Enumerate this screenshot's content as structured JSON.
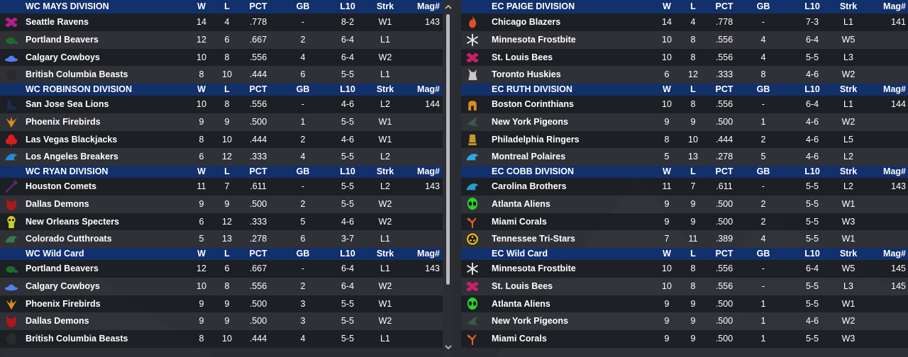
{
  "headers": {
    "w": "W",
    "l": "L",
    "pct": "PCT",
    "gb": "GB",
    "l10": "L10",
    "strk": "Strk",
    "mag": "Mag#"
  },
  "colors": {
    "header_bg": "#12306b",
    "page_bg": "#2a2c31"
  },
  "left": [
    {
      "title": "WC MAYS DIVISION",
      "teams": [
        {
          "name": "Seattle Ravens",
          "icon": "seattle-ravens-logo-icon",
          "color": "#b0208a",
          "w": "14",
          "l": "4",
          "pct": ".778",
          "gb": "-",
          "l10": "8-2",
          "strk": "W1",
          "mag": "143"
        },
        {
          "name": "Portland Beavers",
          "icon": "portland-beavers-logo-icon",
          "color": "#1e6a2e",
          "w": "12",
          "l": "6",
          "pct": ".667",
          "gb": "2",
          "l10": "6-4",
          "strk": "L1",
          "mag": ""
        },
        {
          "name": "Calgary Cowboys",
          "icon": "calgary-cowboys-logo-icon",
          "color": "#4f7ff0",
          "w": "10",
          "l": "8",
          "pct": ".556",
          "gb": "4",
          "l10": "6-4",
          "strk": "W2",
          "mag": ""
        },
        {
          "name": "British Columbia Beasts",
          "icon": "british-columbia-beasts-logo-icon",
          "color": "#2a2a2a",
          "w": "8",
          "l": "10",
          "pct": ".444",
          "gb": "6",
          "l10": "5-5",
          "strk": "L1",
          "mag": ""
        }
      ]
    },
    {
      "title": "WC ROBINSON DIVISION",
      "teams": [
        {
          "name": "San Jose Sea Lions",
          "icon": "san-jose-sea-lions-logo-icon",
          "color": "#1a2d55",
          "w": "10",
          "l": "8",
          "pct": ".556",
          "gb": "-",
          "l10": "4-6",
          "strk": "L2",
          "mag": "144"
        },
        {
          "name": "Phoenix Firebirds",
          "icon": "phoenix-firebirds-logo-icon",
          "color": "#e08a1e",
          "w": "9",
          "l": "9",
          "pct": ".500",
          "gb": "1",
          "l10": "5-5",
          "strk": "W1",
          "mag": ""
        },
        {
          "name": "Las Vegas Blackjacks",
          "icon": "las-vegas-blackjacks-logo-icon",
          "color": "#d81e1e",
          "w": "8",
          "l": "10",
          "pct": ".444",
          "gb": "2",
          "l10": "4-6",
          "strk": "W1",
          "mag": ""
        },
        {
          "name": "Los Angeles Breakers",
          "icon": "los-angeles-breakers-logo-icon",
          "color": "#1f8ad8",
          "w": "6",
          "l": "12",
          "pct": ".333",
          "gb": "4",
          "l10": "5-5",
          "strk": "L2",
          "mag": ""
        }
      ]
    },
    {
      "title": "WC RYAN DIVISION",
      "teams": [
        {
          "name": "Houston Comets",
          "icon": "houston-comets-logo-icon",
          "color": "#5a2a78",
          "w": "11",
          "l": "7",
          "pct": ".611",
          "gb": "-",
          "l10": "5-5",
          "strk": "L2",
          "mag": "143"
        },
        {
          "name": "Dallas Demons",
          "icon": "dallas-demons-logo-icon",
          "color": "#b01818",
          "w": "9",
          "l": "9",
          "pct": ".500",
          "gb": "2",
          "l10": "5-5",
          "strk": "W2",
          "mag": ""
        },
        {
          "name": "New Orleans Specters",
          "icon": "new-orleans-specters-logo-icon",
          "color": "#c8d020",
          "w": "6",
          "l": "12",
          "pct": ".333",
          "gb": "5",
          "l10": "4-6",
          "strk": "W2",
          "mag": ""
        },
        {
          "name": "Colorado Cutthroats",
          "icon": "colorado-cutthroats-logo-icon",
          "color": "#3a7a4a",
          "w": "5",
          "l": "13",
          "pct": ".278",
          "gb": "6",
          "l10": "3-7",
          "strk": "L1",
          "mag": ""
        }
      ]
    },
    {
      "title": "WC  Wild Card",
      "teams": [
        {
          "name": "Portland Beavers",
          "icon": "portland-beavers-logo-icon",
          "color": "#1e6a2e",
          "w": "12",
          "l": "6",
          "pct": ".667",
          "gb": "-",
          "l10": "6-4",
          "strk": "L1",
          "mag": "143"
        },
        {
          "name": "Calgary Cowboys",
          "icon": "calgary-cowboys-logo-icon",
          "color": "#4f7ff0",
          "w": "10",
          "l": "8",
          "pct": ".556",
          "gb": "2",
          "l10": "6-4",
          "strk": "W2",
          "mag": ""
        },
        {
          "name": "Phoenix Firebirds",
          "icon": "phoenix-firebirds-logo-icon",
          "color": "#e08a1e",
          "w": "9",
          "l": "9",
          "pct": ".500",
          "gb": "3",
          "l10": "5-5",
          "strk": "W1",
          "mag": ""
        },
        {
          "name": "Dallas Demons",
          "icon": "dallas-demons-logo-icon",
          "color": "#b01818",
          "w": "9",
          "l": "9",
          "pct": ".500",
          "gb": "3",
          "l10": "5-5",
          "strk": "W2",
          "mag": ""
        },
        {
          "name": "British Columbia Beasts",
          "icon": "british-columbia-beasts-logo-icon",
          "color": "#2a2a2a",
          "w": "8",
          "l": "10",
          "pct": ".444",
          "gb": "4",
          "l10": "5-5",
          "strk": "L1",
          "mag": ""
        }
      ]
    }
  ],
  "right": [
    {
      "title": "EC PAIGE DIVISION",
      "teams": [
        {
          "name": "Chicago Blazers",
          "icon": "chicago-blazers-logo-icon",
          "color": "#e0501e",
          "w": "14",
          "l": "4",
          "pct": ".778",
          "gb": "-",
          "l10": "7-3",
          "strk": "L1",
          "mag": "141"
        },
        {
          "name": "Minnesota Frostbite",
          "icon": "minnesota-frostbite-logo-icon",
          "color": "#e8e8e8",
          "w": "10",
          "l": "8",
          "pct": ".556",
          "gb": "4",
          "l10": "6-4",
          "strk": "W5",
          "mag": ""
        },
        {
          "name": "St. Louis Bees",
          "icon": "st-louis-bees-logo-icon",
          "color": "#c8206a",
          "w": "10",
          "l": "8",
          "pct": ".556",
          "gb": "4",
          "l10": "5-5",
          "strk": "L3",
          "mag": ""
        },
        {
          "name": "Toronto Huskies",
          "icon": "toronto-huskies-logo-icon",
          "color": "#c8c8c8",
          "w": "6",
          "l": "12",
          "pct": ".333",
          "gb": "8",
          "l10": "4-6",
          "strk": "W2",
          "mag": ""
        }
      ]
    },
    {
      "title": "EC RUTH DIVISION",
      "teams": [
        {
          "name": "Boston Corinthians",
          "icon": "boston-corinthians-logo-icon",
          "color": "#e08a1e",
          "w": "10",
          "l": "8",
          "pct": ".556",
          "gb": "-",
          "l10": "6-4",
          "strk": "L1",
          "mag": "144"
        },
        {
          "name": "New York Pigeons",
          "icon": "new-york-pigeons-logo-icon",
          "color": "#3a5a4a",
          "w": "9",
          "l": "9",
          "pct": ".500",
          "gb": "1",
          "l10": "4-6",
          "strk": "W2",
          "mag": ""
        },
        {
          "name": "Philadelphia Ringers",
          "icon": "philadelphia-ringers-logo-icon",
          "color": "#c8962a",
          "w": "8",
          "l": "10",
          "pct": ".444",
          "gb": "2",
          "l10": "4-6",
          "strk": "L5",
          "mag": ""
        },
        {
          "name": "Montreal Polaires",
          "icon": "montreal-polaires-logo-icon",
          "color": "#28a8e8",
          "w": "5",
          "l": "13",
          "pct": ".278",
          "gb": "5",
          "l10": "4-6",
          "strk": "L2",
          "mag": ""
        }
      ]
    },
    {
      "title": "EC COBB DIVISION",
      "teams": [
        {
          "name": "Carolina Brothers",
          "icon": "carolina-brothers-logo-icon",
          "color": "#2a9ad0",
          "w": "11",
          "l": "7",
          "pct": ".611",
          "gb": "-",
          "l10": "5-5",
          "strk": "L2",
          "mag": "143"
        },
        {
          "name": "Atlanta Aliens",
          "icon": "atlanta-aliens-logo-icon",
          "color": "#2ad02a",
          "w": "9",
          "l": "9",
          "pct": ".500",
          "gb": "2",
          "l10": "5-5",
          "strk": "W1",
          "mag": ""
        },
        {
          "name": "Miami Corals",
          "icon": "miami-corals-logo-icon",
          "color": "#e0602a",
          "w": "9",
          "l": "9",
          "pct": ".500",
          "gb": "2",
          "l10": "5-5",
          "strk": "W3",
          "mag": ""
        },
        {
          "name": "Tennessee Tri-Stars",
          "icon": "tennessee-tri-stars-logo-icon",
          "color": "#e8b820",
          "w": "7",
          "l": "11",
          "pct": ".389",
          "gb": "4",
          "l10": "5-5",
          "strk": "W1",
          "mag": ""
        }
      ]
    },
    {
      "title": "EC  Wild Card",
      "teams": [
        {
          "name": "Minnesota Frostbite",
          "icon": "minnesota-frostbite-logo-icon",
          "color": "#e8e8e8",
          "w": "10",
          "l": "8",
          "pct": ".556",
          "gb": "-",
          "l10": "6-4",
          "strk": "W5",
          "mag": "145"
        },
        {
          "name": "St. Louis Bees",
          "icon": "st-louis-bees-logo-icon",
          "color": "#c8206a",
          "w": "10",
          "l": "8",
          "pct": ".556",
          "gb": "-",
          "l10": "5-5",
          "strk": "L3",
          "mag": "145"
        },
        {
          "name": "Atlanta Aliens",
          "icon": "atlanta-aliens-logo-icon",
          "color": "#2ad02a",
          "w": "9",
          "l": "9",
          "pct": ".500",
          "gb": "1",
          "l10": "5-5",
          "strk": "W1",
          "mag": ""
        },
        {
          "name": "New York Pigeons",
          "icon": "new-york-pigeons-logo-icon",
          "color": "#3a5a4a",
          "w": "9",
          "l": "9",
          "pct": ".500",
          "gb": "1",
          "l10": "4-6",
          "strk": "W2",
          "mag": ""
        },
        {
          "name": "Miami Corals",
          "icon": "miami-corals-logo-icon",
          "color": "#e0602a",
          "w": "9",
          "l": "9",
          "pct": ".500",
          "gb": "1",
          "l10": "5-5",
          "strk": "W3",
          "mag": ""
        }
      ]
    }
  ]
}
